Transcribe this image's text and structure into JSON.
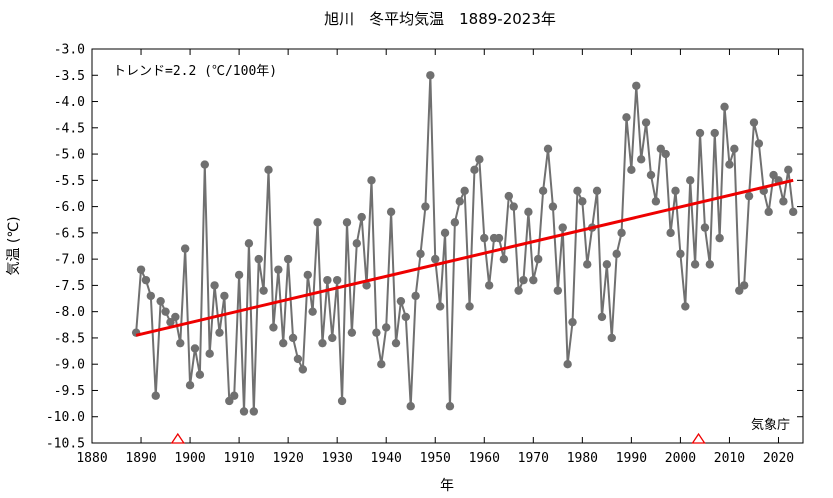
{
  "chart_data": {
    "type": "line",
    "title": "旭川　冬平均気温　1889-2023年",
    "xlabel": "年",
    "ylabel": "気温 (℃)",
    "xlim": [
      1880,
      2025
    ],
    "ylim": [
      -10.5,
      -3.0
    ],
    "grid": false,
    "x_ticks": [
      1880,
      1890,
      1900,
      1910,
      1920,
      1930,
      1940,
      1950,
      1960,
      1970,
      1980,
      1990,
      2000,
      2010,
      2020
    ],
    "x_tick_labels": [
      "1880",
      "1890",
      "1900",
      "1910",
      "1920",
      "1930",
      "1940",
      "1950",
      "1960",
      "1970",
      "1980",
      "1990",
      "2000",
      "2010",
      "2020"
    ],
    "y_ticks": [
      -3.0,
      -3.5,
      -4.0,
      -4.5,
      -5.0,
      -5.5,
      -6.0,
      -6.5,
      -7.0,
      -7.5,
      -8.0,
      -8.5,
      -9.0,
      -9.5,
      -10.0,
      -10.5
    ],
    "y_tick_labels": [
      "-3.0",
      "-3.5",
      "-4.0",
      "-4.5",
      "-5.0",
      "-5.5",
      "-6.0",
      "-6.5",
      "-7.0",
      "-7.5",
      "-8.0",
      "-8.5",
      "-9.0",
      "-9.5",
      "-10.0",
      "-10.5"
    ],
    "trend_annotation": "トレンド=2.2 (℃/100年)",
    "source_label": "気象庁",
    "series": [
      {
        "color": "#707070",
        "x": [
          1889,
          1890,
          1891,
          1892,
          1893,
          1894,
          1895,
          1896,
          1897,
          1898,
          1899,
          1900,
          1901,
          1902,
          1903,
          1904,
          1905,
          1906,
          1907,
          1908,
          1909,
          1910,
          1911,
          1912,
          1913,
          1914,
          1915,
          1916,
          1917,
          1918,
          1919,
          1920,
          1921,
          1922,
          1923,
          1924,
          1925,
          1926,
          1927,
          1928,
          1929,
          1930,
          1931,
          1932,
          1933,
          1934,
          1935,
          1936,
          1937,
          1938,
          1939,
          1940,
          1941,
          1942,
          1943,
          1944,
          1945,
          1946,
          1947,
          1948,
          1949,
          1950,
          1951,
          1952,
          1953,
          1954,
          1955,
          1956,
          1957,
          1958,
          1959,
          1960,
          1961,
          1962,
          1963,
          1964,
          1965,
          1966,
          1967,
          1968,
          1969,
          1970,
          1971,
          1972,
          1973,
          1974,
          1975,
          1976,
          1977,
          1978,
          1979,
          1980,
          1981,
          1982,
          1983,
          1984,
          1985,
          1986,
          1987,
          1988,
          1989,
          1990,
          1991,
          1992,
          1993,
          1994,
          1995,
          1996,
          1997,
          1998,
          1999,
          2000,
          2001,
          2002,
          2003,
          2004,
          2005,
          2006,
          2007,
          2008,
          2009,
          2010,
          2011,
          2012,
          2013,
          2014,
          2015,
          2016,
          2017,
          2018,
          2019,
          2020,
          2021,
          2022,
          2023
        ],
        "values": [
          -8.4,
          -7.2,
          -7.4,
          -7.7,
          -9.6,
          -7.8,
          -8.0,
          -8.2,
          -8.1,
          -8.6,
          -6.8,
          -9.4,
          -8.7,
          -9.2,
          -5.2,
          -8.8,
          -7.5,
          -8.4,
          -7.7,
          -9.7,
          -9.6,
          -7.3,
          -9.9,
          -6.7,
          -9.9,
          -7.0,
          -7.6,
          -5.3,
          -8.3,
          -7.2,
          -8.6,
          -7.0,
          -8.5,
          -8.9,
          -9.1,
          -7.3,
          -8.0,
          -6.3,
          -8.6,
          -7.4,
          -8.5,
          -7.4,
          -9.7,
          -6.3,
          -8.4,
          -6.7,
          -6.2,
          -7.5,
          -5.5,
          -8.4,
          -9.0,
          -8.3,
          -6.1,
          -8.6,
          -7.8,
          -8.1,
          -9.8,
          -7.7,
          -6.9,
          -6.0,
          -3.5,
          -7.0,
          -7.9,
          -6.5,
          -9.8,
          -6.3,
          -5.9,
          -5.7,
          -7.9,
          -5.3,
          -5.1,
          -6.6,
          -7.5,
          -6.6,
          -6.6,
          -7.0,
          -5.8,
          -6.0,
          -7.6,
          -7.4,
          -6.1,
          -7.4,
          -7.0,
          -5.7,
          -4.9,
          -6.0,
          -7.6,
          -6.4,
          -9.0,
          -8.2,
          -5.7,
          -5.9,
          -7.1,
          -6.4,
          -5.7,
          -8.1,
          -7.1,
          -8.5,
          -6.9,
          -6.5,
          -4.3,
          -5.3,
          -3.7,
          -5.1,
          -4.4,
          -5.4,
          -5.9,
          -4.9,
          -5.0,
          -6.5,
          -5.7,
          -6.9,
          -7.9,
          -5.5,
          -7.1,
          -4.6,
          -6.4,
          -7.1,
          -4.6,
          -6.6,
          -4.1,
          -5.2,
          -4.9,
          -7.6,
          -7.5,
          -5.8,
          -4.4,
          -4.8,
          -5.7,
          -6.1,
          -5.4,
          -5.5,
          -5.9,
          -5.3,
          -6.1
        ]
      }
    ],
    "trend_line": {
      "color": "#ee0000",
      "x": [
        1889,
        2023
      ],
      "y": [
        -8.45,
        -5.5
      ]
    },
    "markers": [
      {
        "shape": "triangle",
        "color": "#ee0000",
        "x": 1897.5,
        "y": -10.5
      },
      {
        "shape": "triangle",
        "color": "#ee0000",
        "x": 2003.7,
        "y": -10.5
      }
    ]
  }
}
